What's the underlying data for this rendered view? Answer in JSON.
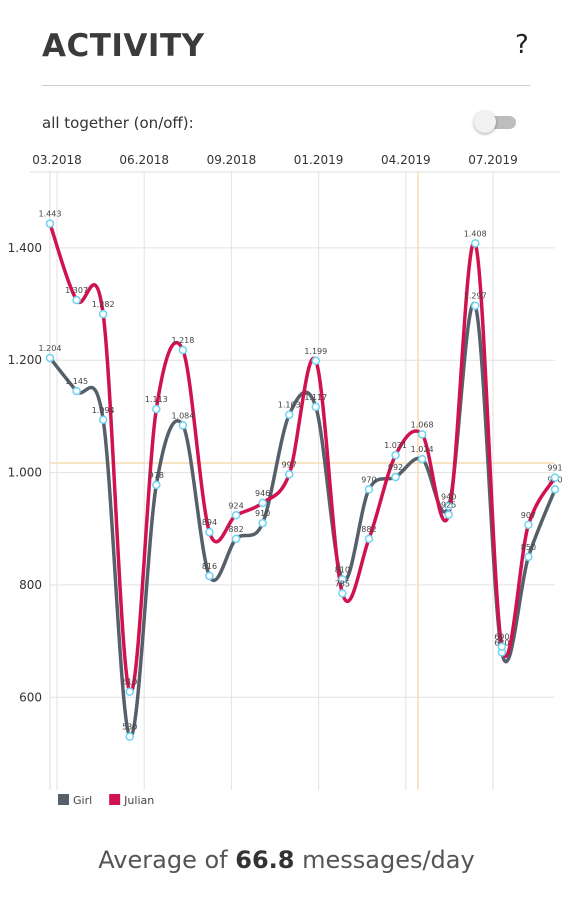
{
  "header": {
    "title": "ACTIVITY",
    "help": "?"
  },
  "toggle_label": "all together (on/off):",
  "footer": {
    "prefix": "Average of",
    "value": "66.8",
    "suffix": "messages/day"
  },
  "chart_data": {
    "type": "line",
    "x_labels": [
      "03.2018",
      "06.2018",
      "09.2018",
      "01.2019",
      "04.2019",
      "07.2019"
    ],
    "categories": [
      null,
      null,
      null,
      null,
      null,
      null,
      null,
      null,
      null,
      null,
      null,
      null,
      null,
      null,
      null,
      null,
      null,
      null,
      null,
      null
    ],
    "ylim": [
      435,
      1535
    ],
    "yticks": [
      {
        "value": 600,
        "label": "600"
      },
      {
        "value": 800,
        "label": "800"
      },
      {
        "value": 1000,
        "label": "1.000"
      },
      {
        "value": 1200,
        "label": "1.200"
      },
      {
        "value": 1400,
        "label": "1.400"
      }
    ],
    "grid": true,
    "legend": "bottom-left",
    "series": [
      {
        "name": "Girl",
        "color": "#56606b",
        "values": [
          1204,
          1145,
          1094,
          530,
          978,
          1084,
          816,
          882,
          910,
          1103,
          1117,
          810,
          970,
          992,
          1024,
          940,
          1297,
          680,
          850,
          970
        ],
        "value_labels": [
          "1.204",
          "1.145",
          "1.094",
          "530",
          "978",
          "1.084",
          "816",
          "882",
          "910",
          "1.103",
          "1.117",
          "810",
          "970",
          "992",
          "1.024",
          "940",
          "1.297",
          "680",
          "850",
          "970"
        ]
      },
      {
        "name": "Julian",
        "color": "#d0134f",
        "values": [
          1443,
          1307,
          1282,
          610,
          1113,
          1218,
          894,
          924,
          946,
          997,
          1199,
          785,
          882,
          1031,
          1068,
          925,
          1408,
          690,
          907,
          991
        ],
        "value_labels": [
          "1.443",
          "1.307",
          "1.282",
          "610",
          "1.113",
          "1.218",
          "894",
          "924",
          "946",
          "997",
          "1.199",
          "785",
          "882",
          "1.031",
          "1.068",
          "925",
          "1.408",
          "690",
          "907",
          "991"
        ]
      }
    ]
  }
}
